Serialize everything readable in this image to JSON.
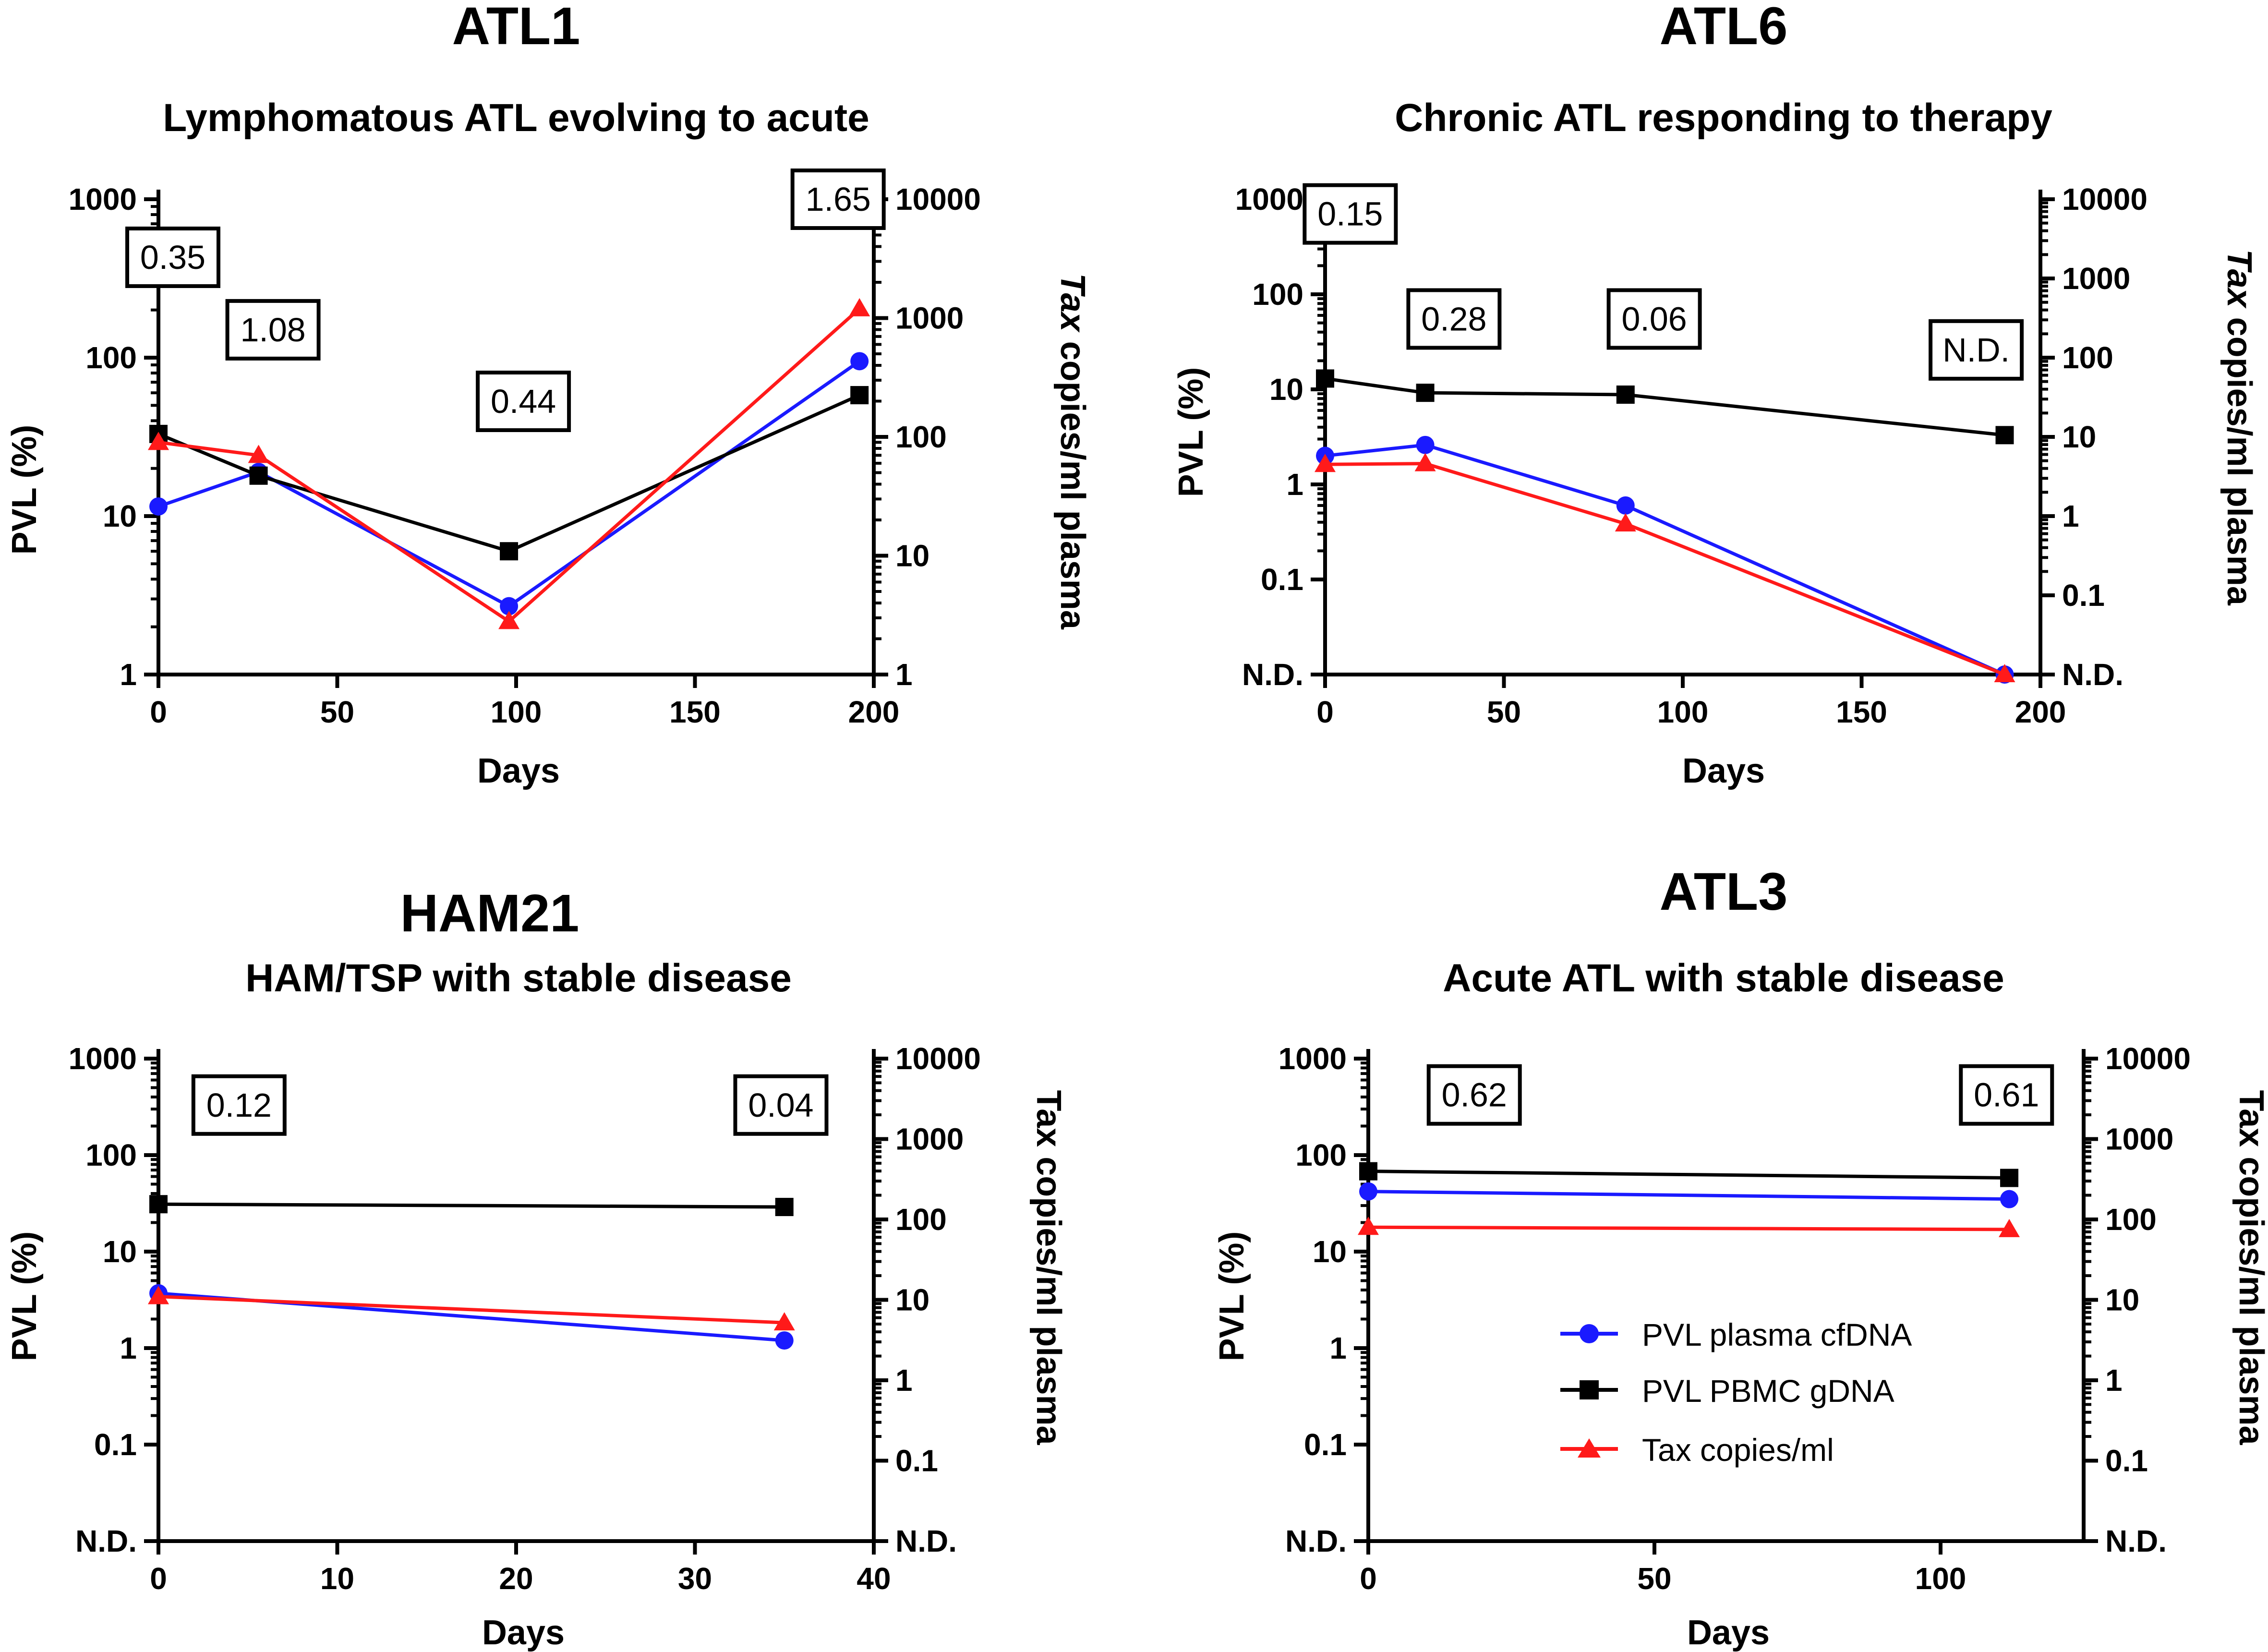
{
  "colors": {
    "plasma": "#1a1aff",
    "pbmc": "#000000",
    "tax": "#ff1a1a",
    "axis": "#000000",
    "box": "#000000"
  },
  "legend": {
    "position": "lower-center of ATL3 panel",
    "items": [
      {
        "label": "PVL plasma cfDNA",
        "color": "#1a1aff",
        "marker": "circle"
      },
      {
        "label": "PVL PBMC gDNA",
        "color": "#000000",
        "marker": "square"
      },
      {
        "label": "Tax copies/ml",
        "color": "#ff1a1a",
        "marker": "triangle"
      }
    ]
  },
  "chart_data": [
    {
      "type": "line",
      "title": "ATL1",
      "subtitle": "Lymphomatous ATL evolving to acute",
      "xlabel": "Days",
      "ylabel": "PVL (%)",
      "y2label_italic": "Tax",
      "y2label_rest": " copies/ml plasma",
      "xlim": [
        0,
        200
      ],
      "xticks": [
        "0",
        "50",
        "100",
        "150",
        "200"
      ],
      "yticks": [
        "1000",
        "100",
        "10",
        "1"
      ],
      "y2ticks": [
        "10000",
        "1000",
        "100",
        "10",
        "1"
      ],
      "ylim_log": [
        1,
        1000
      ],
      "y2lim_log": [
        1,
        10000
      ],
      "series": [
        {
          "name": "PVL plasma cfDNA",
          "axis": "left",
          "x": [
            0,
            28,
            98,
            196
          ],
          "y": [
            11.5,
            19,
            2.7,
            95
          ]
        },
        {
          "name": "PVL PBMC gDNA",
          "axis": "left",
          "x": [
            0,
            28,
            98,
            196
          ],
          "y": [
            33,
            18,
            6,
            58
          ]
        },
        {
          "name": "Tax copies/ml",
          "axis": "right",
          "x": [
            0,
            28,
            98,
            196
          ],
          "y": [
            90,
            70,
            2.8,
            1200
          ]
        }
      ],
      "annotations": [
        {
          "text": "0.35",
          "x": 0,
          "y": 430
        },
        {
          "text": "1.08",
          "x": 28,
          "y": 150
        },
        {
          "text": "0.44",
          "x": 98,
          "y": 53
        },
        {
          "text": "1.65",
          "x": 186,
          "y": 1000
        }
      ]
    },
    {
      "type": "line",
      "title": "ATL6",
      "subtitle": "Chronic ATL responding to therapy",
      "xlabel": "Days",
      "ylabel": "PVL (%)",
      "y2label_italic": "Tax",
      "y2label_rest": " copies/ml plasma",
      "xlim": [
        0,
        200
      ],
      "xticks": [
        "0",
        "50",
        "100",
        "150",
        "200"
      ],
      "yticks": [
        "1000",
        "100",
        "10",
        "1",
        "0.1",
        "N.D."
      ],
      "y2ticks": [
        "10000",
        "1000",
        "100",
        "10",
        "1",
        "0.1",
        "N.D."
      ],
      "series": [
        {
          "name": "PVL plasma cfDNA",
          "axis": "left",
          "x": [
            0,
            28,
            84,
            190
          ],
          "y": [
            2,
            2.6,
            0.6,
            "N.D."
          ]
        },
        {
          "name": "PVL PBMC gDNA",
          "axis": "left",
          "x": [
            0,
            28,
            84,
            190
          ],
          "y": [
            13,
            9.2,
            8.8,
            3.3
          ]
        },
        {
          "name": "Tax copies/ml",
          "axis": "right",
          "x": [
            0,
            28,
            84,
            190
          ],
          "y": [
            4.5,
            4.6,
            0.8,
            "N.D."
          ]
        }
      ],
      "annotations": [
        {
          "text": "0.15",
          "x": 3,
          "y": 700
        },
        {
          "text": "0.28",
          "x": 32,
          "y": 55
        },
        {
          "text": "0.06",
          "x": 88,
          "y": 55
        },
        {
          "text": "N.D.",
          "x": 178,
          "y": 26
        }
      ]
    },
    {
      "type": "line",
      "title": "HAM21",
      "subtitle": "HAM/TSP with stable disease",
      "xlabel": "Days",
      "ylabel": "PVL  (%)",
      "y2label_italic": "",
      "y2label_rest": "Tax copies/ml plasma",
      "xlim": [
        0,
        40
      ],
      "xticks": [
        "0",
        "10",
        "20",
        "30",
        "40"
      ],
      "yticks": [
        "1000",
        "100",
        "10",
        "1",
        "0.1",
        "N.D."
      ],
      "y2ticks": [
        "10000",
        "1000",
        "100",
        "10",
        "1",
        "0.1",
        "N.D."
      ],
      "series": [
        {
          "name": "PVL plasma cfDNA",
          "axis": "left",
          "x": [
            0,
            35
          ],
          "y": [
            3.7,
            1.2
          ]
        },
        {
          "name": "PVL PBMC gDNA",
          "axis": "left",
          "x": [
            0,
            35
          ],
          "y": [
            31,
            29
          ]
        },
        {
          "name": "Tax copies/ml",
          "axis": "right",
          "x": [
            0,
            35
          ],
          "y": [
            11,
            5.2
          ]
        }
      ],
      "annotations": [
        {
          "text": "0.12",
          "x": 3.7,
          "y": 330
        },
        {
          "text": "0.04",
          "x": 34,
          "y": 330
        }
      ]
    },
    {
      "type": "line",
      "title": "ATL3",
      "subtitle": "Acute ATL with stable disease",
      "xlabel": "Days",
      "ylabel": "PVL (%)",
      "y2label_italic": "",
      "y2label_rest": "Tax copies/ml plasma",
      "xlim": [
        0,
        125
      ],
      "xticks": [
        "0",
        "50",
        "100"
      ],
      "yticks": [
        "1000",
        "100",
        "10",
        "1",
        "0.1",
        "N.D."
      ],
      "y2ticks": [
        "10000",
        "1000",
        "100",
        "10",
        "1",
        "0.1",
        "N.D."
      ],
      "series": [
        {
          "name": "PVL plasma cfDNA",
          "axis": "left",
          "x": [
            0,
            112
          ],
          "y": [
            42,
            35
          ]
        },
        {
          "name": "PVL PBMC gDNA",
          "axis": "left",
          "x": [
            0,
            112
          ],
          "y": [
            68,
            58
          ]
        },
        {
          "name": "Tax copies/ml",
          "axis": "right",
          "x": [
            0,
            112
          ],
          "y": [
            80,
            75
          ]
        }
      ],
      "annotations": [
        {
          "text": "0.62",
          "x": 16,
          "y": 420
        },
        {
          "text": "0.61",
          "x": 109,
          "y": 420
        }
      ]
    }
  ]
}
